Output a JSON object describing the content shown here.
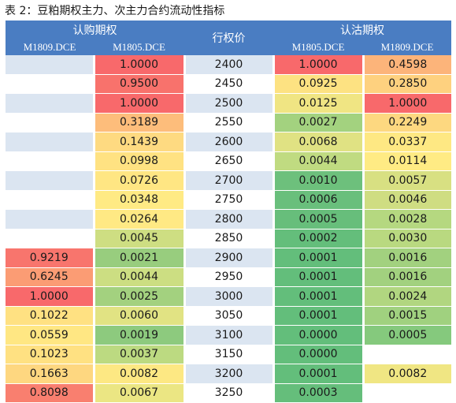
{
  "title": "表 2：豆粕期权主力、次主力合约流动性指标",
  "header": {
    "call_group": "认购期权",
    "put_group": "认沽期权",
    "strike": "行权价",
    "call_cols": [
      "M1809.DCE",
      "M1805.DCE"
    ],
    "put_cols": [
      "M1805.DCE",
      "M1809.DCE"
    ]
  },
  "colors": {
    "header_bg": "#4a7dc2",
    "band_light": "#dbe5f1",
    "band_white": "#ffffff",
    "scale_low": "#63be7b",
    "scale_mid": "#ffeb84",
    "scale_high": "#f8696b"
  },
  "rows": [
    {
      "strike": "2400",
      "call_m1809": "",
      "call_m1805": "1.0000",
      "put_m1805": "1.0000",
      "put_m1809": "0.4598",
      "c1": "",
      "c2": "#f8696b",
      "c3": "#f8696b",
      "c4": "#fcb47a"
    },
    {
      "strike": "2450",
      "call_m1809": "",
      "call_m1805": "0.9500",
      "put_m1805": "0.0925",
      "put_m1809": "0.2850",
      "c1": "",
      "c2": "#f8726c",
      "c3": "#fde282",
      "c4": "#fed17f"
    },
    {
      "strike": "2500",
      "call_m1809": "",
      "call_m1805": "1.0000",
      "put_m1805": "0.0125",
      "put_m1809": "1.0000",
      "c1": "",
      "c2": "#f8696b",
      "c3": "#f0e583",
      "c4": "#f8696b"
    },
    {
      "strike": "2550",
      "call_m1809": "",
      "call_m1805": "0.3189",
      "put_m1805": "0.0027",
      "put_m1809": "0.2249",
      "c1": "",
      "c2": "#fdbd7b",
      "c3": "#a3d27f",
      "c4": "#fdd880"
    },
    {
      "strike": "2600",
      "call_m1809": "",
      "call_m1805": "0.1439",
      "put_m1805": "0.0068",
      "put_m1809": "0.0337",
      "c1": "",
      "c2": "#feda81",
      "c3": "#e0e283",
      "c4": "#fee883"
    },
    {
      "strike": "2650",
      "call_m1809": "",
      "call_m1805": "0.0998",
      "put_m1805": "0.0044",
      "put_m1809": "0.0114",
      "c1": "",
      "c2": "#ffe282",
      "c3": "#c0db81",
      "c4": "#ffeb84"
    },
    {
      "strike": "2700",
      "call_m1809": "",
      "call_m1805": "0.0726",
      "put_m1805": "0.0010",
      "put_m1809": "0.0057",
      "c1": "",
      "c2": "#ffe683",
      "c3": "#6dc07c",
      "c4": "#d8e082"
    },
    {
      "strike": "2750",
      "call_m1809": "",
      "call_m1805": "0.0348",
      "put_m1805": "0.0006",
      "put_m1809": "0.0046",
      "c1": "",
      "c2": "#ffea84",
      "c3": "#69bf7c",
      "c4": "#cfdd82"
    },
    {
      "strike": "2800",
      "call_m1809": "",
      "call_m1805": "0.0264",
      "put_m1805": "0.0005",
      "put_m1809": "0.0028",
      "c1": "",
      "c2": "#ffe984",
      "c3": "#67be7b",
      "c4": "#b5d880"
    },
    {
      "strike": "2850",
      "call_m1809": "",
      "call_m1805": "0.0045",
      "put_m1805": "0.0002",
      "put_m1809": "0.0030",
      "c1": "",
      "c2": "#cede82",
      "c3": "#64be7b",
      "c4": "#b9d980"
    },
    {
      "strike": "2900",
      "call_m1809": "0.9219",
      "call_m1805": "0.0021",
      "put_m1805": "0.0001",
      "put_m1809": "0.0016",
      "c1": "#f8756d",
      "c2": "#98cd7e",
      "c3": "#63be7b",
      "c4": "#a2d17f"
    },
    {
      "strike": "2950",
      "call_m1809": "0.6245",
      "call_m1805": "0.0044",
      "put_m1805": "0.0001",
      "put_m1809": "0.0016",
      "c1": "#fb9c74",
      "c2": "#ccde82",
      "c3": "#63be7b",
      "c4": "#a2d17f"
    },
    {
      "strike": "3000",
      "call_m1809": "1.0000",
      "call_m1805": "0.0025",
      "put_m1805": "0.0001",
      "put_m1809": "0.0024",
      "c1": "#f8696b",
      "c2": "#a3d17f",
      "c3": "#63be7b",
      "c4": "#b1d680"
    },
    {
      "strike": "3050",
      "call_m1809": "0.1022",
      "call_m1805": "0.0060",
      "put_m1805": "0.0001",
      "put_m1809": "0.0015",
      "c1": "#ffe182",
      "c2": "#e1e383",
      "c3": "#63be7b",
      "c4": "#a0d17f"
    },
    {
      "strike": "3100",
      "call_m1809": "0.0559",
      "call_m1805": "0.0019",
      "put_m1805": "0.0000",
      "put_m1809": "0.0005",
      "c1": "#ffe783",
      "c2": "#8dca7e",
      "c3": "#63be7b",
      "c4": "#85c97d"
    },
    {
      "strike": "3150",
      "call_m1809": "0.1023",
      "call_m1805": "0.0037",
      "put_m1805": "0.0000",
      "put_m1809": "",
      "c1": "#ffe182",
      "c2": "#bcda81",
      "c3": "#63be7b",
      "c4": ""
    },
    {
      "strike": "3200",
      "call_m1809": "0.1663",
      "call_m1805": "0.0082",
      "put_m1805": "0.0001",
      "put_m1809": "0.0082",
      "c1": "#fed780",
      "c2": "#fde883",
      "c3": "#63be7b",
      "c4": "#f0e683"
    },
    {
      "strike": "3250",
      "call_m1809": "0.8098",
      "call_m1805": "0.0067",
      "put_m1805": "0.0003",
      "put_m1809": "",
      "c1": "#f97f6f",
      "c2": "#ebe683",
      "c3": "#65be7b",
      "c4": ""
    }
  ]
}
